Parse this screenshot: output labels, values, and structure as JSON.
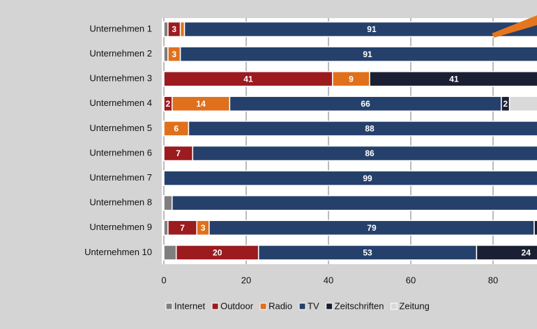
{
  "chart_data": {
    "type": "stacked-bar-horizontal",
    "categories": [
      "Unternehmen 1",
      "Unternehmen 2",
      "Unternehmen 3",
      "Unternehmen 4",
      "Unternehmen 5",
      "Unternehmen 6",
      "Unternehmen 7",
      "Unternehmen 8",
      "Unternehmen 9",
      "Unternehmen 10"
    ],
    "series": [
      {
        "name": "Internet",
        "color": "#7f7f7f",
        "values": [
          1,
          1,
          0,
          0,
          0,
          0,
          0,
          2,
          1,
          3
        ],
        "value_labels": [
          null,
          null,
          null,
          null,
          null,
          null,
          null,
          null,
          null,
          null
        ]
      },
      {
        "name": "Outdoor",
        "color": "#9b1b1f",
        "values": [
          3,
          0,
          41,
          2,
          0,
          7,
          0,
          0,
          7,
          20
        ],
        "value_labels": [
          "3",
          null,
          "41",
          "2",
          null,
          "7",
          null,
          null,
          "7",
          "20"
        ]
      },
      {
        "name": "Radio",
        "color": "#e0701c",
        "values": [
          1,
          3,
          9,
          14,
          6,
          0,
          0,
          0,
          3,
          0
        ],
        "value_labels": [
          null,
          "3",
          "9",
          "14",
          "6",
          null,
          null,
          null,
          "3",
          null
        ]
      },
      {
        "name": "TV",
        "color": "#25406b",
        "values": [
          91,
          91,
          0,
          66,
          88,
          86,
          99,
          98,
          79,
          53
        ],
        "value_labels": [
          "91",
          "91",
          null,
          "66",
          "88",
          "86",
          "99",
          null,
          "79",
          "53"
        ]
      },
      {
        "name": "Zeitschriften",
        "color": "#1b1f33",
        "values": [
          0,
          0,
          41,
          2,
          0,
          0,
          0,
          0,
          1,
          24
        ],
        "value_labels": [
          null,
          null,
          "41",
          "2",
          null,
          null,
          null,
          null,
          null,
          "24"
        ]
      },
      {
        "name": "Zeitung",
        "color": "#d9d9d9",
        "values": [
          4,
          5,
          9,
          16,
          6,
          7,
          1,
          0,
          9,
          0
        ],
        "value_labels": [
          null,
          null,
          null,
          null,
          null,
          null,
          null,
          null,
          null,
          null
        ]
      }
    ],
    "xlim": [
      0,
      100
    ],
    "xticks": [
      0,
      20,
      40,
      60,
      80
    ],
    "grid": true,
    "legend": "bottom"
  }
}
